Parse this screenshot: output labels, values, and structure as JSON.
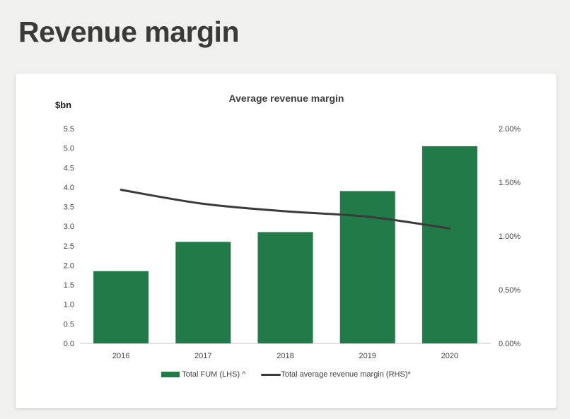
{
  "page": {
    "title": "Revenue margin"
  },
  "chart_data": {
    "type": "bar",
    "title": "Average revenue margin",
    "categories": [
      "2016",
      "2017",
      "2018",
      "2019",
      "2020"
    ],
    "series": [
      {
        "name": "Total FUM (LHS) ^",
        "type": "bar",
        "axis": "left",
        "color": "#217b48",
        "values": [
          1.85,
          2.6,
          2.85,
          3.9,
          5.05
        ]
      },
      {
        "name": "Total average revenue margin (RHS)*",
        "type": "line",
        "axis": "right",
        "color": "#3b3b3b",
        "values": [
          1.43,
          1.3,
          1.23,
          1.18,
          1.07
        ]
      }
    ],
    "left_axis": {
      "label": "$bn",
      "min": 0,
      "max": 5.5,
      "step": 0.5,
      "ticks": [
        "0.0",
        "0.5",
        "1.0",
        "1.5",
        "2.0",
        "2.5",
        "3.0",
        "3.5",
        "4.0",
        "4.5",
        "5.0",
        "5.5"
      ]
    },
    "right_axis": {
      "min": 0,
      "max": 2,
      "step": 0.5,
      "ticks": [
        "0.00%",
        "0.50%",
        "1.00%",
        "1.50%",
        "2.00%"
      ]
    },
    "grid": false,
    "legend_position": "bottom",
    "colors": {
      "page_background": "#f0f0ee",
      "card_background": "#ffffff",
      "baseline": "#d9d9d9",
      "heading_text": "#3a3a3a",
      "axis_text": "#444444"
    }
  }
}
